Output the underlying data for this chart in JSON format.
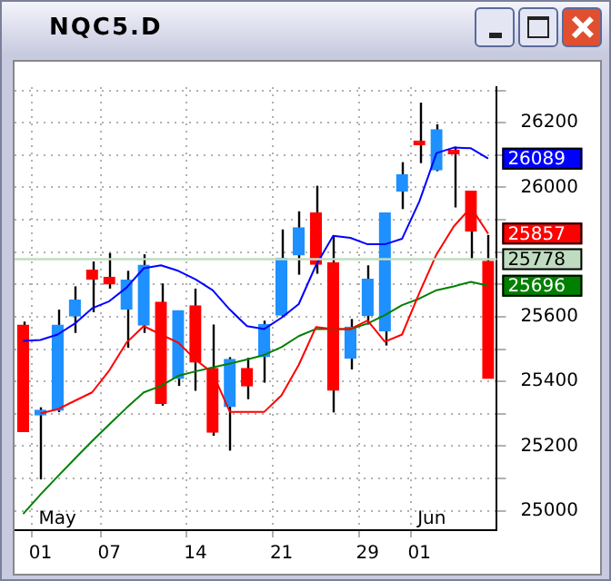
{
  "chart_data": {
    "type": "candlestick",
    "title": "NQC5.D",
    "categories": [
      null,
      "01",
      null,
      null,
      null,
      "07",
      null,
      null,
      null,
      null,
      "14",
      null,
      null,
      null,
      null,
      "21",
      null,
      null,
      null,
      null,
      "29",
      null,
      null,
      "01",
      null,
      null,
      null,
      null
    ],
    "ohlc": [
      [
        25574,
        25585,
        25245,
        25245
      ],
      [
        25296,
        25320,
        25097,
        25311
      ],
      [
        25311,
        25622,
        25305,
        25574
      ],
      [
        25602,
        25694,
        25550,
        25651
      ],
      [
        25744,
        25771,
        25614,
        25716
      ],
      [
        25722,
        25797,
        25687,
        25701
      ],
      [
        25624,
        25742,
        25504,
        25713
      ],
      [
        25574,
        25793,
        25550,
        25759
      ],
      [
        25645,
        25703,
        25325,
        25332
      ],
      [
        25409,
        25619,
        25386,
        25619
      ],
      [
        25634,
        25687,
        25371,
        25460
      ],
      [
        25440,
        25576,
        25232,
        25243
      ],
      [
        25322,
        25475,
        25186,
        25468
      ],
      [
        25440,
        25473,
        25345,
        25386
      ],
      [
        25477,
        25588,
        25396,
        25576
      ],
      [
        25605,
        25870,
        25600,
        25781
      ],
      [
        25791,
        25926,
        25730,
        25875
      ],
      [
        25921,
        26005,
        25733,
        25762
      ],
      [
        25767,
        25850,
        25304,
        25373
      ],
      [
        25472,
        25593,
        25437,
        25568
      ],
      [
        25604,
        25759,
        25576,
        25716
      ],
      [
        25557,
        25921,
        25511,
        25921
      ],
      [
        25988,
        26078,
        25933,
        26039
      ],
      [
        26138,
        26262,
        26075,
        26132
      ],
      [
        26054,
        26195,
        26050,
        26178
      ],
      [
        26114,
        26126,
        25938,
        26104
      ],
      [
        25988,
        25988,
        25779,
        25865
      ],
      [
        25771,
        25853,
        25409,
        25409
      ]
    ],
    "colors": [
      "#ff0000",
      "#1e90ff",
      "#1e90ff",
      "#1e90ff",
      "#ff0000",
      "#ff0000",
      "#1e90ff",
      "#1e90ff",
      "#ff0000",
      "#1e90ff",
      "#ff0000",
      "#ff0000",
      "#1e90ff",
      "#ff0000",
      "#1e90ff",
      "#1e90ff",
      "#1e90ff",
      "#ff0000",
      "#ff0000",
      "#1e90ff",
      "#1e90ff",
      "#1e90ff",
      "#1e90ff",
      "#ff0000",
      "#1e90ff",
      "#ff0000",
      "#ff0000",
      "#ff0000"
    ],
    "series": [
      {
        "type": "line",
        "color": "#0000ff",
        "values": [
          25525,
          25528,
          25545,
          25579,
          25626,
          25648,
          25690,
          25750,
          25759,
          25742,
          25716,
          25682,
          25622,
          25571,
          25562,
          25597,
          25639,
          25759,
          25850,
          25844,
          25824,
          25824,
          25841,
          25956,
          26106,
          26123,
          26121,
          26089
        ]
      },
      {
        "type": "line",
        "color": "#ff0000",
        "values": [
          null,
          25301,
          25314,
          25340,
          25366,
          25434,
          25520,
          25571,
          25545,
          25520,
          25468,
          25426,
          25306,
          25306,
          25306,
          25357,
          25451,
          25568,
          25562,
          25562,
          25588,
          25523,
          25545,
          25673,
          25793,
          25879,
          25938,
          25857
        ]
      },
      {
        "type": "line",
        "color": "#008000",
        "values": [
          24990,
          25050,
          25106,
          25161,
          25215,
          25267,
          25318,
          25366,
          25386,
          25417,
          25431,
          25443,
          25455,
          25468,
          25482,
          25506,
          25540,
          25562,
          25562,
          25562,
          25579,
          25605,
          25636,
          25656,
          25682,
          25694,
          25708,
          25696
        ]
      }
    ],
    "ylim": [
      24940,
      26310
    ],
    "yticks": [
      25000,
      {
        "value": 25100,
        "label": null
      },
      25200,
      {
        "value": 25300,
        "label": null
      },
      25400,
      {
        "value": 25500,
        "label": null
      },
      25600,
      {
        "value": 25700,
        "label": null
      },
      {
        "value": 25800,
        "label": null
      },
      {
        "value": 25900,
        "label": null
      },
      26000,
      {
        "value": 26100,
        "label": null
      },
      26200,
      {
        "value": 26300,
        "label": null
      }
    ],
    "ref_lines": [
      {
        "axis": "y",
        "value": 25778,
        "label": "25778",
        "color": "#c0dcc0"
      }
    ],
    "annotations": [
      "May",
      "Jun",
      "26089",
      "25857",
      "25696"
    ],
    "grid": true,
    "marker": "none",
    "line_style": "solid",
    "legend": false
  }
}
